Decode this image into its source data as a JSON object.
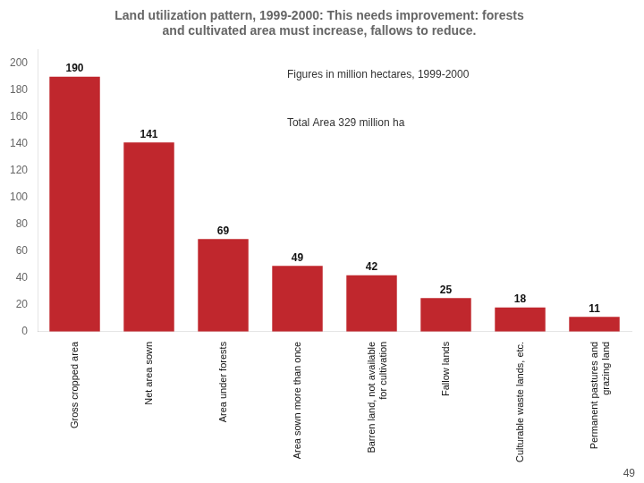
{
  "chart_data": {
    "type": "bar",
    "title": "Land utilization pattern, 1999-2000: This needs improvement: forests\nand cultivated area must increase, fallows to reduce.",
    "categories": [
      "Gross cropped area",
      "Net area sown",
      "Area under forests",
      "Area sown more than once",
      "Barren land, not available\nfor cultivation",
      "Fallow lands",
      "Culturable waste lands, etc.",
      "Permanent pastures and\ngrazing land"
    ],
    "values": [
      190,
      141,
      69,
      49,
      42,
      25,
      18,
      11
    ],
    "color": "#c0272d",
    "ylim": [
      0,
      210
    ],
    "yticks": [
      0,
      20,
      40,
      60,
      80,
      100,
      120,
      140,
      160,
      180,
      200
    ],
    "grid": false,
    "data_labels": true,
    "annotations": [
      "Figures in million hectares, 1999-2000",
      "Total Area 329 million ha",
      "49"
    ]
  }
}
